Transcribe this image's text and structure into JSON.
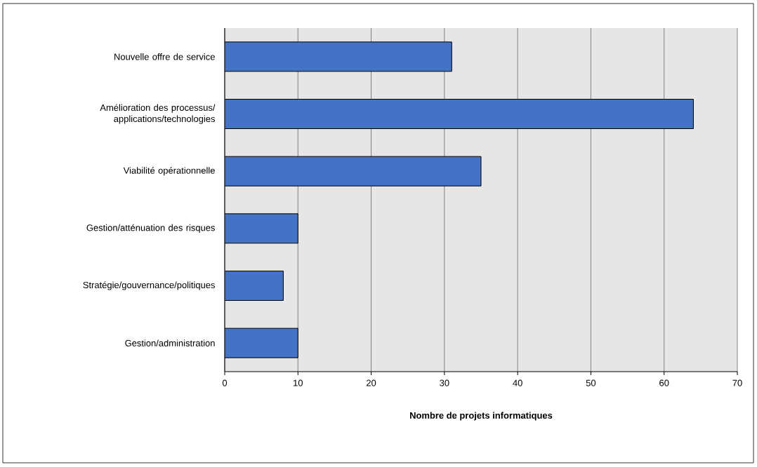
{
  "chart_data": {
    "type": "bar",
    "orientation": "horizontal",
    "xlabel": "Nombre de projets informatiques",
    "categories": [
      "Nouvelle offre de service",
      "Amélioration des processus/ applications/technologies",
      "Viabilité opérationnelle",
      "Gestion/atténuation des risques",
      "Stratégie/gouvernance/politiques",
      "Gestion/administration"
    ],
    "values": [
      31,
      64,
      35,
      10,
      8,
      10
    ],
    "color": "#4472c4",
    "xlim": [
      0,
      70
    ],
    "xticks": [
      0,
      10,
      20,
      30,
      40,
      50,
      60,
      70
    ],
    "grid": "x"
  }
}
